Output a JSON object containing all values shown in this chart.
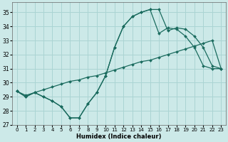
{
  "xlabel": "Humidex (Indice chaleur)",
  "xlim": [
    -0.5,
    23.5
  ],
  "ylim": [
    27,
    35.7
  ],
  "xticks": [
    0,
    1,
    2,
    3,
    4,
    5,
    6,
    7,
    8,
    9,
    10,
    11,
    12,
    13,
    14,
    15,
    16,
    17,
    18,
    19,
    20,
    21,
    22,
    23
  ],
  "yticks": [
    27,
    28,
    29,
    30,
    31,
    32,
    33,
    34,
    35
  ],
  "bg_color": "#cce9e8",
  "grid_color": "#aad4d3",
  "line_color": "#1a6b5e",
  "line1_x": [
    0,
    1,
    2,
    3,
    4,
    5,
    6,
    7,
    8,
    9,
    10,
    11,
    12,
    13,
    14,
    15,
    16,
    17,
    18,
    19,
    20,
    21,
    22,
    23
  ],
  "line1_y": [
    29.4,
    29.0,
    29.3,
    29.0,
    28.7,
    28.3,
    27.5,
    27.5,
    28.5,
    29.3,
    30.5,
    32.5,
    34.0,
    34.7,
    35.0,
    35.2,
    35.2,
    33.7,
    33.9,
    33.8,
    33.3,
    32.5,
    31.2,
    31.0
  ],
  "line2_x": [
    0,
    1,
    2,
    3,
    4,
    5,
    6,
    7,
    8,
    9,
    10,
    11,
    12,
    13,
    14,
    15,
    16,
    17,
    18,
    19,
    20,
    21,
    22,
    23
  ],
  "line2_y": [
    29.4,
    29.1,
    29.3,
    29.5,
    29.7,
    29.9,
    30.1,
    30.2,
    30.4,
    30.5,
    30.7,
    30.9,
    31.1,
    31.3,
    31.5,
    31.6,
    31.8,
    32.0,
    32.2,
    32.4,
    32.6,
    32.8,
    33.0,
    31.0
  ],
  "line3_x": [
    0,
    1,
    2,
    3,
    4,
    5,
    6,
    7,
    8,
    9,
    10,
    11,
    12,
    13,
    14,
    15,
    16,
    17,
    18,
    19,
    20,
    21,
    22,
    23
  ],
  "line3_y": [
    29.4,
    29.0,
    29.3,
    29.0,
    28.7,
    28.3,
    27.5,
    27.5,
    28.5,
    29.3,
    30.5,
    32.5,
    34.0,
    34.7,
    35.0,
    35.2,
    33.5,
    33.9,
    33.8,
    33.3,
    32.5,
    31.2,
    31.0,
    31.0
  ]
}
